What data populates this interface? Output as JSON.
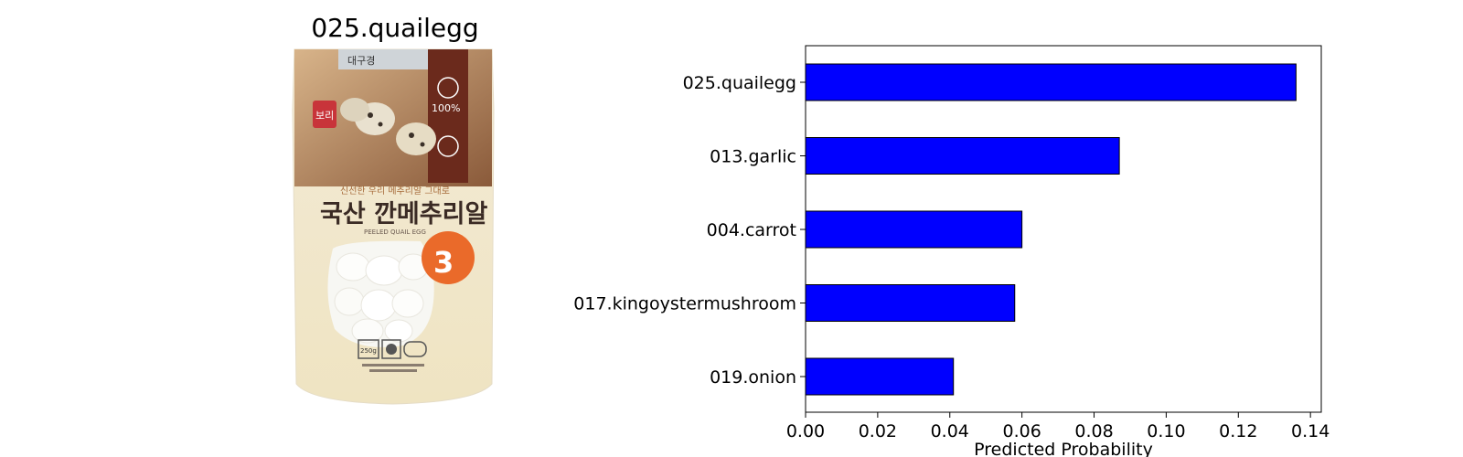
{
  "image_panel": {
    "title": "025.quailegg",
    "package_text": {
      "top_label": "대구경",
      "brand_badge": "보리",
      "badge_100": "100%",
      "headline_small": "신선한 우리 메추리알 그대로",
      "headline": "국산 깐메추리알",
      "headline_en": "PEELED QUAIL EGG",
      "sticker": "3",
      "weight_icon": "250g"
    }
  },
  "chart_data": {
    "type": "bar",
    "orientation": "horizontal",
    "categories": [
      "025.quailegg",
      "013.garlic",
      "004.carrot",
      "017.kingoystermushroom",
      "019.onion"
    ],
    "values": [
      0.136,
      0.087,
      0.06,
      0.058,
      0.041
    ],
    "xlabel": "Predicted Probability",
    "ylabel": "",
    "xlim": [
      0,
      0.143
    ],
    "xticks": [
      "0.00",
      "0.02",
      "0.04",
      "0.06",
      "0.08",
      "0.10",
      "0.12",
      "0.14"
    ],
    "bar_color": "#0000ff",
    "grid": false
  }
}
